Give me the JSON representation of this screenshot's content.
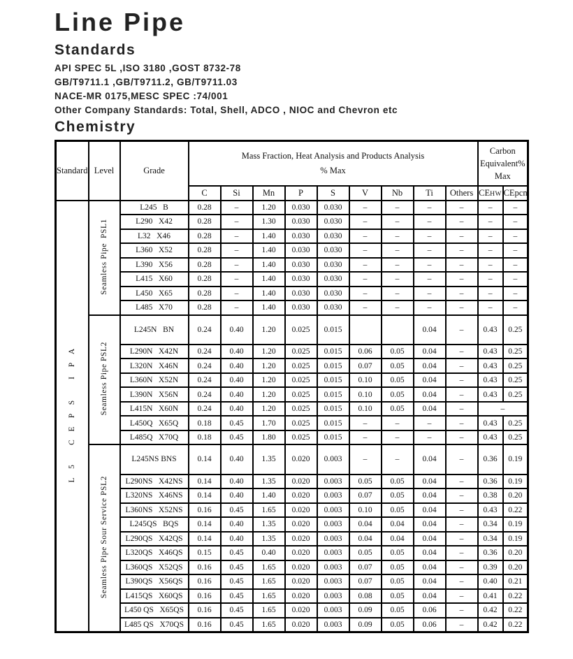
{
  "page": {
    "title": "Line Pipe",
    "standards_heading": "Standards",
    "standards_lines": [
      "API SPEC 5L ,ISO 3180 ,GOST 8732-78",
      "GB/T9711.1 ,GB/T9711.2, GB/T9711.03",
      "NACE-MR 0175,MESC SPEC :74/001",
      "Other Company Standards: Total, Shell, ADCO , NIOC and Chevron etc"
    ],
    "chemistry_heading": "Chemistry"
  },
  "table": {
    "header": {
      "standard": "Standard",
      "level": "Level",
      "grade": "Grade",
      "mass_line1": "Mass Fraction, Heat Analysis and Products Analysis",
      "mass_line2": "% Max",
      "carbon_lines": [
        "Carbon",
        "Equivalent%",
        "Max"
      ],
      "columns": [
        "C",
        "Si",
        "Mn",
        "P",
        "S",
        "V",
        "Nb",
        "Ti",
        "Others"
      ],
      "ce_hw_prefix": "CE",
      "ce_hw_sub": "HW",
      "ce_pcm": "CEpcm"
    },
    "standard_label": "API SPEC 5L",
    "sections": [
      {
        "level": "Seamless Pipe  PSL1",
        "rows": [
          {
            "grade": "L245   B",
            "cells": [
              "0.28",
              "–",
              "1.20",
              "0.030",
              "0.030",
              "–",
              "–",
              "–",
              "–",
              "–",
              "–"
            ]
          },
          {
            "grade": "L290   X42",
            "cells": [
              "0.28",
              "–",
              "1.30",
              "0.030",
              "0.030",
              "–",
              "–",
              "–",
              "–",
              "–",
              "–"
            ]
          },
          {
            "grade": "L32   X46",
            "cells": [
              "0.28",
              "–",
              "1.40",
              "0.030",
              "0.030",
              "–",
              "–",
              "–",
              "–",
              "–",
              "–"
            ]
          },
          {
            "grade": "L360   X52",
            "cells": [
              "0.28",
              "–",
              "1.40",
              "0.030",
              "0.030",
              "–",
              "–",
              "–",
              "–",
              "–",
              "–"
            ]
          },
          {
            "grade": "L390   X56",
            "cells": [
              "0.28",
              "–",
              "1.40",
              "0.030",
              "0.030",
              "–",
              "–",
              "–",
              "–",
              "–",
              "–"
            ]
          },
          {
            "grade": "L415   X60",
            "cells": [
              "0.28",
              "–",
              "1.40",
              "0.030",
              "0.030",
              "–",
              "–",
              "–",
              "–",
              "–",
              "–"
            ]
          },
          {
            "grade": "L450   X65",
            "cells": [
              "0.28",
              "–",
              "1.40",
              "0.030",
              "0.030",
              "–",
              "–",
              "–",
              "–",
              "–",
              "–"
            ]
          },
          {
            "grade": "L485   X70",
            "cells": [
              "0.28",
              "–",
              "1.40",
              "0.030",
              "0.030",
              "–",
              "–",
              "–",
              "–",
              "–",
              "–"
            ]
          }
        ]
      },
      {
        "level": "Seamless Pipe PSL2",
        "rows": [
          {
            "grade": "L245N   BN",
            "cells": [
              "0.24",
              "0.40",
              "1.20",
              "0.025",
              "0.015",
              "",
              "",
              "0.04",
              "–",
              "0.43",
              "0.25"
            ]
          },
          {
            "grade": "L290N   X42N",
            "cells": [
              "0.24",
              "0.40",
              "1.20",
              "0.025",
              "0.015",
              "0.06",
              "0.05",
              "0.04",
              "–",
              "0.43",
              "0.25"
            ]
          },
          {
            "grade": "L320N   X46N",
            "cells": [
              "0.24",
              "0.40",
              "1.20",
              "0.025",
              "0.015",
              "0.07",
              "0.05",
              "0.04",
              "–",
              "0.43",
              "0.25"
            ]
          },
          {
            "grade": "L360N   X52N",
            "cells": [
              "0.24",
              "0.40",
              "1.20",
              "0.025",
              "0.015",
              "0.10",
              "0.05",
              "0.04",
              "–",
              "0.43",
              "0.25"
            ]
          },
          {
            "grade": "L390N   X56N",
            "cells": [
              "0.24",
              "0.40",
              "1.20",
              "0.025",
              "0.015",
              "0.10",
              "0.05",
              "0.04",
              "–",
              "0.43",
              "0.25"
            ]
          },
          {
            "grade": "L415N   X60N",
            "cells": [
              "0.24",
              "0.40",
              "1.20",
              "0.025",
              "0.015",
              "0.10",
              "0.05",
              "0.04",
              "–",
              "–"
            ],
            "ce_merged": true
          },
          {
            "grade": "L450Q   X65Q",
            "cells": [
              "0.18",
              "0.45",
              "1.70",
              "0.025",
              "0.015",
              "–",
              "–",
              "–",
              "–",
              "0.43",
              "0.25"
            ]
          },
          {
            "grade": "L485Q   X70Q",
            "cells": [
              "0.18",
              "0.45",
              "1.80",
              "0.025",
              "0.015",
              "–",
              "–",
              "–",
              "–",
              "0.43",
              "0.25"
            ]
          }
        ]
      },
      {
        "level": "Seamless Pipe Sour Service PSL2",
        "rows": [
          {
            "grade": "L245NS BNS",
            "cells": [
              "0.14",
              "0.40",
              "1.35",
              "0.020",
              "0.003",
              "–",
              "–",
              "0.04",
              "–",
              "0.36",
              "0.19"
            ]
          },
          {
            "grade": "L290NS   X42NS",
            "cells": [
              "0.14",
              "0.40",
              "1.35",
              "0.020",
              "0.003",
              "0.05",
              "0.05",
              "0.04",
              "–",
              "0.36",
              "0.19"
            ]
          },
          {
            "grade": "L320NS   X46NS",
            "cells": [
              "0.14",
              "0.40",
              "1.40",
              "0.020",
              "0.003",
              "0.07",
              "0.05",
              "0.04",
              "–",
              "0.38",
              "0.20"
            ]
          },
          {
            "grade": "L360NS   X52NS",
            "cells": [
              "0.16",
              "0.45",
              "1.65",
              "0.020",
              "0.003",
              "0.10",
              "0.05",
              "0.04",
              "–",
              "0.43",
              "0.22"
            ]
          },
          {
            "grade": "L245QS   BQS",
            "cells": [
              "0.14",
              "0.40",
              "1.35",
              "0.020",
              "0.003",
              "0.04",
              "0.04",
              "0.04",
              "–",
              "0.34",
              "0.19"
            ]
          },
          {
            "grade": "L290QS   X42QS",
            "cells": [
              "0.14",
              "0.40",
              "1.35",
              "0.020",
              "0.003",
              "0.04",
              "0.04",
              "0.04",
              "–",
              "0.34",
              "0.19"
            ]
          },
          {
            "grade": "L320QS   X46QS",
            "cells": [
              "0.15",
              "0.45",
              "0.40",
              "0.020",
              "0.003",
              "0.05",
              "0.05",
              "0.04",
              "–",
              "0.36",
              "0.20"
            ]
          },
          {
            "grade": "L360QS   X52QS",
            "cells": [
              "0.16",
              "0.45",
              "1.65",
              "0.020",
              "0.003",
              "0.07",
              "0.05",
              "0.04",
              "–",
              "0.39",
              "0.20"
            ]
          },
          {
            "grade": "L390QS   X56QS",
            "cells": [
              "0.16",
              "0.45",
              "1.65",
              "0.020",
              "0.003",
              "0.07",
              "0.05",
              "0.04",
              "–",
              "0.40",
              "0.21"
            ]
          },
          {
            "grade": "L415QS   X60QS",
            "cells": [
              "0.16",
              "0.45",
              "1.65",
              "0.020",
              "0.003",
              "0.08",
              "0.05",
              "0.04",
              "–",
              "0.41",
              "0.22"
            ]
          },
          {
            "grade": "L450 QS   X65QS",
            "cells": [
              "0.16",
              "0.45",
              "1.65",
              "0.020",
              "0.003",
              "0.09",
              "0.05",
              "0.06",
              "–",
              "0.42",
              "0.22"
            ]
          },
          {
            "grade": "L485 QS   X70QS",
            "cells": [
              "0.16",
              "0.45",
              "1.65",
              "0.020",
              "0.003",
              "0.09",
              "0.05",
              "0.06",
              "–",
              "0.42",
              "0.22"
            ]
          }
        ]
      }
    ]
  }
}
